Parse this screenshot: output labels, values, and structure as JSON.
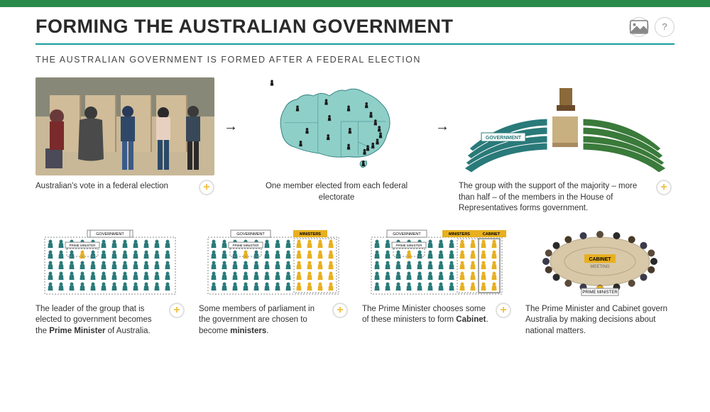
{
  "colors": {
    "green_bar": "#2a8a4a",
    "teal_rule": "#1a9b9b",
    "gov_teal": "#2a7a7a",
    "oppo_green": "#3a7a3a",
    "yellow": "#e8b020",
    "beige": "#d8c8a8",
    "map_fill": "#8ecfc8"
  },
  "header": {
    "title": "FORMING THE AUSTRALIAN GOVERNMENT",
    "image_btn_label": "image",
    "help_btn_label": "?"
  },
  "subheading": "THE AUSTRALIAN GOVERNMENT IS FORMED AFTER A FEDERAL ELECTION",
  "top_row": {
    "panel1": {
      "caption": "Australian's vote in a federal election"
    },
    "panel2": {
      "caption": "One member elected from each federal electorate"
    },
    "panel3": {
      "caption": "The group with the support of the majority – more than half – of the members in the House of Representatives forms government.",
      "gov_label": "GOVERNMENT"
    }
  },
  "bottom_row": {
    "p1": {
      "gov_label": "GOVERNMENT",
      "pm_label": "PRIME MINISTER",
      "cap_a": "The leader of the group that is elected to government becomes the ",
      "cap_b": "Prime Minister",
      "cap_c": " of Australia."
    },
    "p2": {
      "gov_label": "GOVERNMENT",
      "pm_label": "PRIME MINISTER",
      "min_label": "MINISTERS",
      "cap_a": "Some members of parliament in the government are chosen to become ",
      "cap_b": "ministers",
      "cap_c": "."
    },
    "p3": {
      "gov_label": "GOVERNMENT",
      "pm_label": "PRIME MINISTER",
      "min_label": "MINISTERS",
      "cab_label": "CABINET",
      "cap_a": "The Prime Minister chooses some of these ministers to form ",
      "cap_b": "Cabinet",
      "cap_c": "."
    },
    "p4": {
      "cab_label": "CABINET",
      "meet_label": "MEETING",
      "pm_label": "PRIME MINISTER",
      "caption": "The Prime Minister and Cabinet govern Australia by making decisions about national matters."
    }
  }
}
